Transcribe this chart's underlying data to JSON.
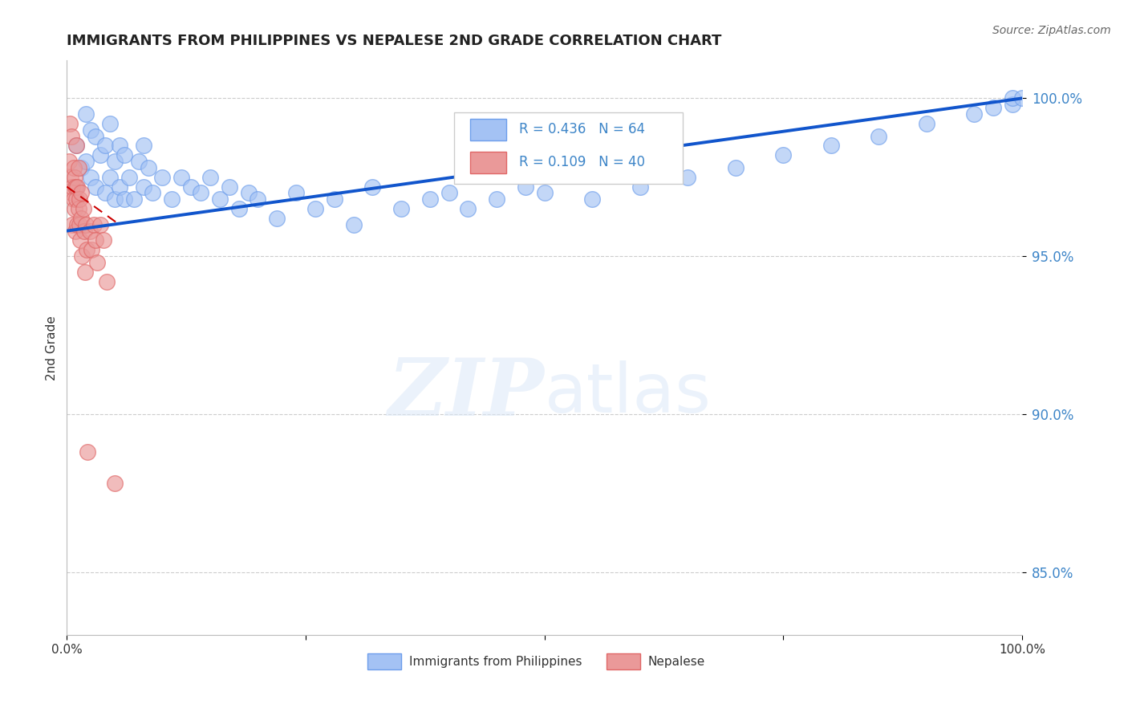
{
  "title": "IMMIGRANTS FROM PHILIPPINES VS NEPALESE 2ND GRADE CORRELATION CHART",
  "source": "Source: ZipAtlas.com",
  "ylabel": "2nd Grade",
  "xlim": [
    0.0,
    1.0
  ],
  "ylim": [
    0.83,
    1.012
  ],
  "yticks": [
    0.85,
    0.9,
    0.95,
    1.0
  ],
  "ytick_labels": [
    "85.0%",
    "90.0%",
    "95.0%",
    "100.0%"
  ],
  "watermark_zip": "ZIP",
  "watermark_atlas": "atlas",
  "blue_color": "#a4c2f4",
  "blue_edge_color": "#6d9eeb",
  "pink_color": "#ea9999",
  "pink_edge_color": "#e06666",
  "blue_line_color": "#1155cc",
  "pink_line_color": "#cc0000",
  "legend_R_blue": "R = 0.436",
  "legend_N_blue": "N = 64",
  "legend_R_pink": "R = 0.109",
  "legend_N_pink": "N = 40",
  "blue_x": [
    0.01,
    0.01,
    0.015,
    0.02,
    0.02,
    0.025,
    0.025,
    0.03,
    0.03,
    0.035,
    0.04,
    0.04,
    0.045,
    0.045,
    0.05,
    0.05,
    0.055,
    0.055,
    0.06,
    0.06,
    0.065,
    0.07,
    0.075,
    0.08,
    0.08,
    0.085,
    0.09,
    0.1,
    0.11,
    0.12,
    0.13,
    0.14,
    0.15,
    0.16,
    0.17,
    0.18,
    0.19,
    0.2,
    0.22,
    0.24,
    0.26,
    0.28,
    0.3,
    0.32,
    0.35,
    0.38,
    0.4,
    0.42,
    0.45,
    0.48,
    0.5,
    0.55,
    0.6,
    0.65,
    0.7,
    0.75,
    0.8,
    0.85,
    0.9,
    0.95,
    0.97,
    0.99,
    0.99,
    1.0
  ],
  "blue_y": [
    0.972,
    0.985,
    0.978,
    0.98,
    0.995,
    0.975,
    0.99,
    0.972,
    0.988,
    0.982,
    0.97,
    0.985,
    0.975,
    0.992,
    0.968,
    0.98,
    0.972,
    0.985,
    0.968,
    0.982,
    0.975,
    0.968,
    0.98,
    0.972,
    0.985,
    0.978,
    0.97,
    0.975,
    0.968,
    0.975,
    0.972,
    0.97,
    0.975,
    0.968,
    0.972,
    0.965,
    0.97,
    0.968,
    0.962,
    0.97,
    0.965,
    0.968,
    0.96,
    0.972,
    0.965,
    0.968,
    0.97,
    0.965,
    0.968,
    0.972,
    0.97,
    0.968,
    0.972,
    0.975,
    0.978,
    0.982,
    0.985,
    0.988,
    0.992,
    0.995,
    0.997,
    0.998,
    1.0,
    1.0
  ],
  "pink_x": [
    0.002,
    0.003,
    0.004,
    0.005,
    0.005,
    0.006,
    0.006,
    0.007,
    0.007,
    0.008,
    0.008,
    0.009,
    0.009,
    0.01,
    0.01,
    0.011,
    0.011,
    0.012,
    0.012,
    0.013,
    0.013,
    0.014,
    0.015,
    0.015,
    0.016,
    0.017,
    0.018,
    0.019,
    0.02,
    0.021,
    0.022,
    0.024,
    0.026,
    0.028,
    0.03,
    0.032,
    0.035,
    0.038,
    0.042,
    0.05
  ],
  "pink_y": [
    0.98,
    0.992,
    0.975,
    0.97,
    0.988,
    0.972,
    0.96,
    0.978,
    0.968,
    0.975,
    0.965,
    0.972,
    0.958,
    0.968,
    0.985,
    0.96,
    0.972,
    0.965,
    0.978,
    0.96,
    0.968,
    0.955,
    0.97,
    0.962,
    0.95,
    0.965,
    0.958,
    0.945,
    0.96,
    0.952,
    0.888,
    0.958,
    0.952,
    0.96,
    0.955,
    0.948,
    0.96,
    0.955,
    0.942,
    0.878
  ],
  "blue_trendline_x": [
    0.0,
    1.0
  ],
  "blue_trendline_y": [
    0.958,
    1.0
  ],
  "pink_trendline_x": [
    0.0,
    0.055
  ],
  "pink_trendline_y": [
    0.972,
    0.96
  ]
}
